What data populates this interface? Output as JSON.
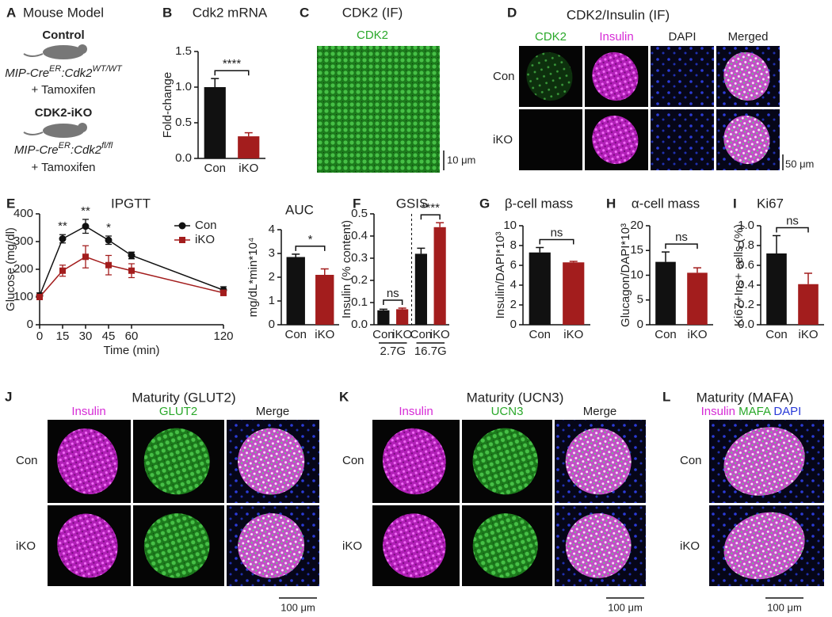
{
  "panel_a": {
    "panel": "A",
    "title": "Mouse Model",
    "groups": [
      {
        "name": "Control",
        "genotype": [
          "MIP-Cre",
          "ER",
          ":Cdk2",
          "WT/WT"
        ],
        "treatment": "+ Tamoxifen"
      },
      {
        "name": "CDK2-iKO",
        "genotype": [
          "MIP-Cre",
          "ER",
          ":Cdk2",
          "fl/fl"
        ],
        "treatment": "+ Tamoxifen"
      }
    ]
  },
  "chart_data": [
    {
      "type": "bar",
      "panel": "B",
      "title": "Cdk2 mRNA",
      "ylabel": "Fold-change",
      "categories": [
        "Con",
        "iKO"
      ],
      "values": [
        1.0,
        0.31
      ],
      "errors": [
        0.12,
        0.05
      ],
      "colors": [
        "#111111",
        "#a31d1d"
      ],
      "ylim": [
        0,
        1.5
      ],
      "yticks": [
        {
          "value": 0,
          "label": "0.0"
        },
        {
          "value": 0.5,
          "label": "0.5"
        },
        {
          "value": 1,
          "label": "1.0"
        },
        1.5
      ],
      "comparisons": [
        {
          "label": "****",
          "categories": [
            0,
            1
          ]
        }
      ]
    },
    {
      "type": "line",
      "panel": "E",
      "title": "IPGTT",
      "xlabel": "Time (min)",
      "ylabel": "Glucose (mg/dl)",
      "x": [
        0,
        15,
        30,
        45,
        60,
        120
      ],
      "xlim": [
        0,
        120
      ],
      "xticks": [
        0,
        15,
        30,
        45,
        60,
        120
      ],
      "ylim": [
        0,
        400
      ],
      "yticks": [
        0,
        100,
        200,
        300,
        400
      ],
      "legend": "upper right",
      "series": [
        {
          "name": "Con",
          "color": "#111111",
          "marker": "circle",
          "values": [
            105,
            310,
            355,
            305,
            250,
            125
          ],
          "errors": [
            10,
            15,
            25,
            15,
            12,
            12
          ]
        },
        {
          "name": "iKO",
          "color": "#a31d1d",
          "marker": "square",
          "values": [
            100,
            195,
            245,
            215,
            195,
            115
          ],
          "errors": [
            8,
            20,
            40,
            35,
            25,
            10
          ]
        }
      ],
      "annotations": [
        {
          "text": "**",
          "x": 15
        },
        {
          "text": "**",
          "x": 30
        },
        {
          "text": "*",
          "x": 45
        }
      ]
    },
    {
      "type": "bar",
      "title": "AUC",
      "ylabel": "mg/dL*min*10⁴",
      "categories": [
        "Con",
        "iKO"
      ],
      "values": [
        2.85,
        2.1
      ],
      "errors": [
        0.12,
        0.25
      ],
      "colors": [
        "#111111",
        "#a31d1d"
      ],
      "ylim": [
        0,
        4
      ],
      "yticks": [
        0,
        1,
        2,
        3,
        4
      ],
      "comparisons": [
        {
          "label": "*",
          "categories": [
            0,
            1
          ]
        }
      ]
    },
    {
      "type": "bar",
      "panel": "F",
      "title": "GSIS",
      "ylabel": "Insulin (% content)",
      "groups": [
        "2.7G",
        "16.7G"
      ],
      "categories": [
        "Con",
        "iKO",
        "Con",
        "iKO"
      ],
      "values": [
        0.065,
        0.07,
        0.32,
        0.44
      ],
      "errors": [
        0.005,
        0.005,
        0.025,
        0.02
      ],
      "colors": [
        "#111111",
        "#a31d1d",
        "#111111",
        "#a31d1d"
      ],
      "ylim": [
        0,
        0.5
      ],
      "yticks": [
        {
          "value": 0,
          "label": "0.0"
        },
        0.1,
        0.2,
        0.3,
        0.4,
        0.5
      ],
      "comparisons": [
        {
          "label": "ns",
          "categories": [
            0,
            1
          ]
        },
        {
          "label": "****",
          "categories": [
            2,
            3
          ]
        }
      ]
    },
    {
      "type": "bar",
      "panel": "G",
      "title": "β-cell mass",
      "ylabel": "Insulin/DAPI*10³",
      "categories": [
        "Con",
        "iKO"
      ],
      "values": [
        7.3,
        6.3
      ],
      "errors": [
        0.5,
        0.1
      ],
      "colors": [
        "#111111",
        "#a31d1d"
      ],
      "ylim": [
        0,
        10
      ],
      "yticks": [
        0,
        2,
        4,
        6,
        8,
        10
      ],
      "comparisons": [
        {
          "label": "ns",
          "categories": [
            0,
            1
          ]
        }
      ]
    },
    {
      "type": "bar",
      "panel": "H",
      "title": "α-cell mass",
      "ylabel": "Glucagon/DAPI*10³",
      "categories": [
        "Con",
        "iKO"
      ],
      "values": [
        12.7,
        10.5
      ],
      "errors": [
        2.0,
        1.0
      ],
      "colors": [
        "#111111",
        "#a31d1d"
      ],
      "ylim": [
        0,
        20
      ],
      "yticks": [
        0,
        5,
        10,
        15,
        20
      ],
      "comparisons": [
        {
          "label": "ns",
          "categories": [
            0,
            1
          ]
        }
      ]
    },
    {
      "type": "bar",
      "panel": "I",
      "title": "Ki67",
      "ylabel": "Ki67+Ins+ cells (%)",
      "categories": [
        "Con",
        "iKO"
      ],
      "values": [
        0.72,
        0.41
      ],
      "errors": [
        0.18,
        0.11
      ],
      "colors": [
        "#111111",
        "#a31d1d"
      ],
      "ylim": [
        0,
        1
      ],
      "yticks": [
        {
          "value": 0,
          "label": "0.0"
        },
        0.2,
        0.4,
        0.6,
        0.8,
        {
          "value": 1,
          "label": "1.0"
        }
      ],
      "comparisons": [
        {
          "label": "ns",
          "categories": [
            0,
            1
          ]
        }
      ]
    }
  ],
  "images": {
    "C": {
      "panel": "C",
      "title": "CDK2 (IF)",
      "channel": "CDK2",
      "scale_bar": "10 μm"
    },
    "D": {
      "panel": "D",
      "title": "CDK2/Insulin (IF)",
      "columns": [
        "CDK2",
        "Insulin",
        "DAPI",
        "Merged"
      ],
      "rows": [
        "Con",
        "iKO"
      ],
      "scale_bar": "50 μm"
    },
    "J": {
      "panel": "J",
      "title": "Maturity (GLUT2)",
      "columns": [
        "Insulin",
        "GLUT2",
        "Merge"
      ],
      "rows": [
        "Con",
        "iKO"
      ],
      "scale_bar": "100 μm"
    },
    "K": {
      "panel": "K",
      "title": "Maturity (UCN3)",
      "columns": [
        "Insulin",
        "UCN3",
        "Merge"
      ],
      "rows": [
        "Con",
        "iKO"
      ],
      "scale_bar": "100 μm"
    },
    "L": {
      "panel": "L",
      "title": "Maturity (MAFA)",
      "channels": [
        "Insulin",
        "MAFA",
        "DAPI"
      ],
      "rows": [
        "Con",
        "iKO"
      ],
      "scale_bar": "100 μm"
    }
  }
}
